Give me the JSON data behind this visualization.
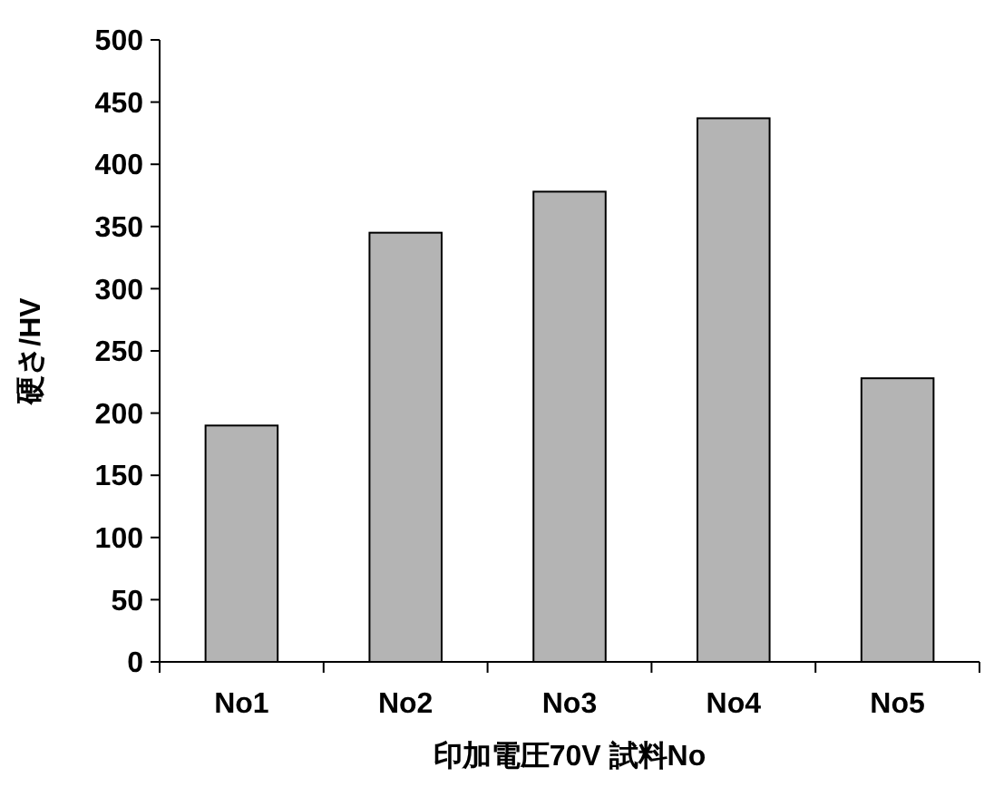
{
  "chart_data": {
    "type": "bar",
    "xlabel": "印加電圧70V  試料No",
    "ylabel": "硬さ/HV",
    "categories": [
      "No1",
      "No2",
      "No3",
      "No4",
      "No5"
    ],
    "values": [
      190,
      345,
      378,
      437,
      228
    ],
    "color": "#b4b4b4",
    "ylim": [
      0,
      500
    ],
    "yticks": [
      0,
      50,
      100,
      150,
      200,
      250,
      300,
      350,
      400,
      450,
      500
    ],
    "grid": false
  }
}
